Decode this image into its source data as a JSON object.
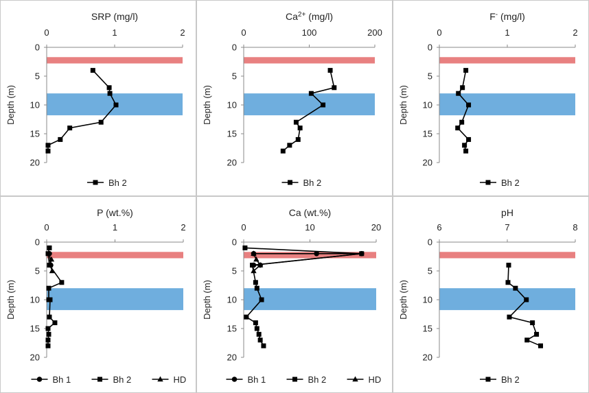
{
  "chart_data": [
    {
      "type": "line",
      "title": "SRP (mg/l)",
      "title_main": "SRP (mg/l)",
      "title_sup": "",
      "title_rest": "",
      "xlim": [
        0,
        2
      ],
      "xticks": [
        "0",
        "1",
        "2"
      ],
      "xtick_values": [
        0,
        1,
        2
      ],
      "ylabel": "Depth (m)",
      "ylim": [
        0,
        20
      ],
      "yticks": [
        "0",
        "5",
        "10",
        "15",
        "20"
      ],
      "ytick_values": [
        0,
        5,
        10,
        15,
        20
      ],
      "bands": [
        {
          "from": 1.7,
          "to": 2.8,
          "color": "#e88080"
        },
        {
          "from": 8.0,
          "to": 11.8,
          "color": "#6faede"
        }
      ],
      "series": [
        {
          "name": "Bh 2",
          "marker": "square",
          "points": [
            [
              0.68,
              4
            ],
            [
              0.92,
              7
            ],
            [
              0.93,
              8
            ],
            [
              1.02,
              10
            ],
            [
              0.8,
              13
            ],
            [
              0.34,
              14
            ],
            [
              0.2,
              16
            ],
            [
              0.02,
              17
            ],
            [
              0.02,
              18
            ]
          ]
        }
      ],
      "legend": [
        "Bh 2"
      ]
    },
    {
      "type": "line",
      "title": "Ca2+ (mg/l)",
      "title_main": "Ca",
      "title_sup": "2+",
      "title_rest": " (mg/l)",
      "xlim": [
        0,
        200
      ],
      "xticks": [
        "0",
        "100",
        "200"
      ],
      "xtick_values": [
        0,
        100,
        200
      ],
      "ylabel": "Depth (m)",
      "ylim": [
        0,
        20
      ],
      "yticks": [
        "0",
        "5",
        "10",
        "15",
        "20"
      ],
      "ytick_values": [
        0,
        5,
        10,
        15,
        20
      ],
      "bands": [
        {
          "from": 1.7,
          "to": 2.8,
          "color": "#e88080"
        },
        {
          "from": 8.0,
          "to": 11.8,
          "color": "#6faede"
        }
      ],
      "series": [
        {
          "name": "Bh 2",
          "marker": "square",
          "points": [
            [
              132,
              4
            ],
            [
              138,
              7
            ],
            [
              103,
              8
            ],
            [
              121,
              10
            ],
            [
              80,
              13
            ],
            [
              86,
              14
            ],
            [
              83,
              16
            ],
            [
              70,
              17
            ],
            [
              60,
              18
            ]
          ]
        }
      ],
      "legend": [
        "Bh 2"
      ]
    },
    {
      "type": "line",
      "title": "F- (mg/l)",
      "title_main": "F",
      "title_sup": "-",
      "title_rest": " (mg/l)",
      "xlim": [
        0,
        2
      ],
      "xticks": [
        "0",
        "1",
        "2"
      ],
      "xtick_values": [
        0,
        1,
        2
      ],
      "ylabel": "Depth (m)",
      "ylim": [
        0,
        20
      ],
      "yticks": [
        "0",
        "5",
        "10",
        "15",
        "20"
      ],
      "ytick_values": [
        0,
        5,
        10,
        15,
        20
      ],
      "bands": [
        {
          "from": 1.7,
          "to": 2.8,
          "color": "#e88080"
        },
        {
          "from": 8.0,
          "to": 11.8,
          "color": "#6faede"
        }
      ],
      "series": [
        {
          "name": "Bh 2",
          "marker": "square",
          "points": [
            [
              0.39,
              4
            ],
            [
              0.34,
              7
            ],
            [
              0.28,
              8
            ],
            [
              0.43,
              10
            ],
            [
              0.33,
              13
            ],
            [
              0.27,
              14
            ],
            [
              0.43,
              16
            ],
            [
              0.37,
              17
            ],
            [
              0.39,
              18
            ]
          ]
        }
      ],
      "legend": [
        "Bh 2"
      ]
    },
    {
      "type": "line",
      "title": "P (wt.%)",
      "title_main": "P (wt.%)",
      "title_sup": "",
      "title_rest": "",
      "xlim": [
        0,
        2
      ],
      "xticks": [
        "0",
        "1",
        "2"
      ],
      "xtick_values": [
        0,
        1,
        2
      ],
      "ylabel": "Depth (m)",
      "ylim": [
        0,
        20
      ],
      "yticks": [
        "0",
        "5",
        "10",
        "15",
        "20"
      ],
      "ytick_values": [
        0,
        5,
        10,
        15,
        20
      ],
      "bands": [
        {
          "from": 1.7,
          "to": 2.8,
          "color": "#e88080"
        },
        {
          "from": 8.0,
          "to": 11.8,
          "color": "#6faede"
        }
      ],
      "series": [
        {
          "name": "Bh 1",
          "marker": "circle",
          "points": [
            [
              0.04,
              2
            ],
            [
              0.06,
              4
            ]
          ]
        },
        {
          "name": "Bh 2",
          "marker": "square",
          "points": [
            [
              0.04,
              1
            ],
            [
              0.02,
              2
            ],
            [
              0.04,
              4
            ],
            [
              0.22,
              7
            ],
            [
              0.03,
              8
            ],
            [
              0.03,
              10
            ],
            [
              0.05,
              10
            ],
            [
              0.04,
              13
            ],
            [
              0.12,
              14
            ],
            [
              0.02,
              15
            ],
            [
              0.03,
              16
            ],
            [
              0.02,
              17
            ],
            [
              0.02,
              18
            ]
          ]
        },
        {
          "name": "HD",
          "marker": "triangle",
          "points": [
            [
              0.07,
              3
            ],
            [
              0.05,
              4
            ],
            [
              0.08,
              5
            ]
          ]
        }
      ],
      "legend": [
        "Bh 1",
        "Bh 2",
        "HD"
      ]
    },
    {
      "type": "line",
      "title": "Ca (wt.%)",
      "title_main": "Ca (wt.%)",
      "title_sup": "",
      "title_rest": "",
      "xlim": [
        0,
        20
      ],
      "xticks": [
        "0",
        "10",
        "20"
      ],
      "xtick_values": [
        0,
        10,
        20
      ],
      "ylabel": "Depth (m)",
      "ylim": [
        0,
        20
      ],
      "yticks": [
        "0",
        "5",
        "10",
        "15",
        "20"
      ],
      "ytick_values": [
        0,
        5,
        10,
        15,
        20
      ],
      "bands": [
        {
          "from": 1.7,
          "to": 2.8,
          "color": "#e88080"
        },
        {
          "from": 8.0,
          "to": 11.8,
          "color": "#6faede"
        }
      ],
      "series": [
        {
          "name": "Bh 1",
          "marker": "circle",
          "points": [
            [
              1.5,
              2
            ],
            [
              11.0,
              2
            ],
            [
              17.8,
              2
            ],
            [
              1.5,
              4
            ],
            [
              2.5,
              4
            ]
          ]
        },
        {
          "name": "Bh 2",
          "marker": "square",
          "points": [
            [
              0.2,
              1
            ],
            [
              17.8,
              2
            ],
            [
              1.3,
              4
            ],
            [
              1.8,
              7
            ],
            [
              2.0,
              8
            ],
            [
              2.7,
              10
            ],
            [
              0.4,
              13
            ],
            [
              1.8,
              14
            ],
            [
              2.0,
              15
            ],
            [
              2.3,
              16
            ],
            [
              2.5,
              17
            ],
            [
              3.0,
              18
            ]
          ]
        },
        {
          "name": "HD",
          "marker": "triangle",
          "points": [
            [
              1.5,
              2
            ],
            [
              1.9,
              3
            ],
            [
              2.5,
              4
            ],
            [
              1.5,
              5
            ]
          ]
        }
      ],
      "legend": [
        "Bh 1",
        "Bh 2",
        "HD"
      ]
    },
    {
      "type": "line",
      "title": "pH",
      "title_main": "pH",
      "title_sup": "",
      "title_rest": "",
      "xlim": [
        6,
        8
      ],
      "xticks": [
        "6",
        "7",
        "8"
      ],
      "xtick_values": [
        6,
        7,
        8
      ],
      "ylabel": "Depth (m)",
      "ylim": [
        0,
        20
      ],
      "yticks": [
        "0",
        "5",
        "10",
        "15",
        "20"
      ],
      "ytick_values": [
        0,
        5,
        10,
        15,
        20
      ],
      "bands": [
        {
          "from": 1.7,
          "to": 2.8,
          "color": "#e88080"
        },
        {
          "from": 8.0,
          "to": 11.8,
          "color": "#6faede"
        }
      ],
      "series": [
        {
          "name": "Bh 2",
          "marker": "square",
          "points": [
            [
              7.02,
              4
            ],
            [
              7.01,
              7
            ],
            [
              7.12,
              8
            ],
            [
              7.28,
              10
            ],
            [
              7.03,
              13
            ],
            [
              7.37,
              14
            ],
            [
              7.43,
              16
            ],
            [
              7.29,
              17
            ],
            [
              7.49,
              18
            ]
          ]
        }
      ],
      "legend": [
        "Bh 2"
      ]
    }
  ]
}
